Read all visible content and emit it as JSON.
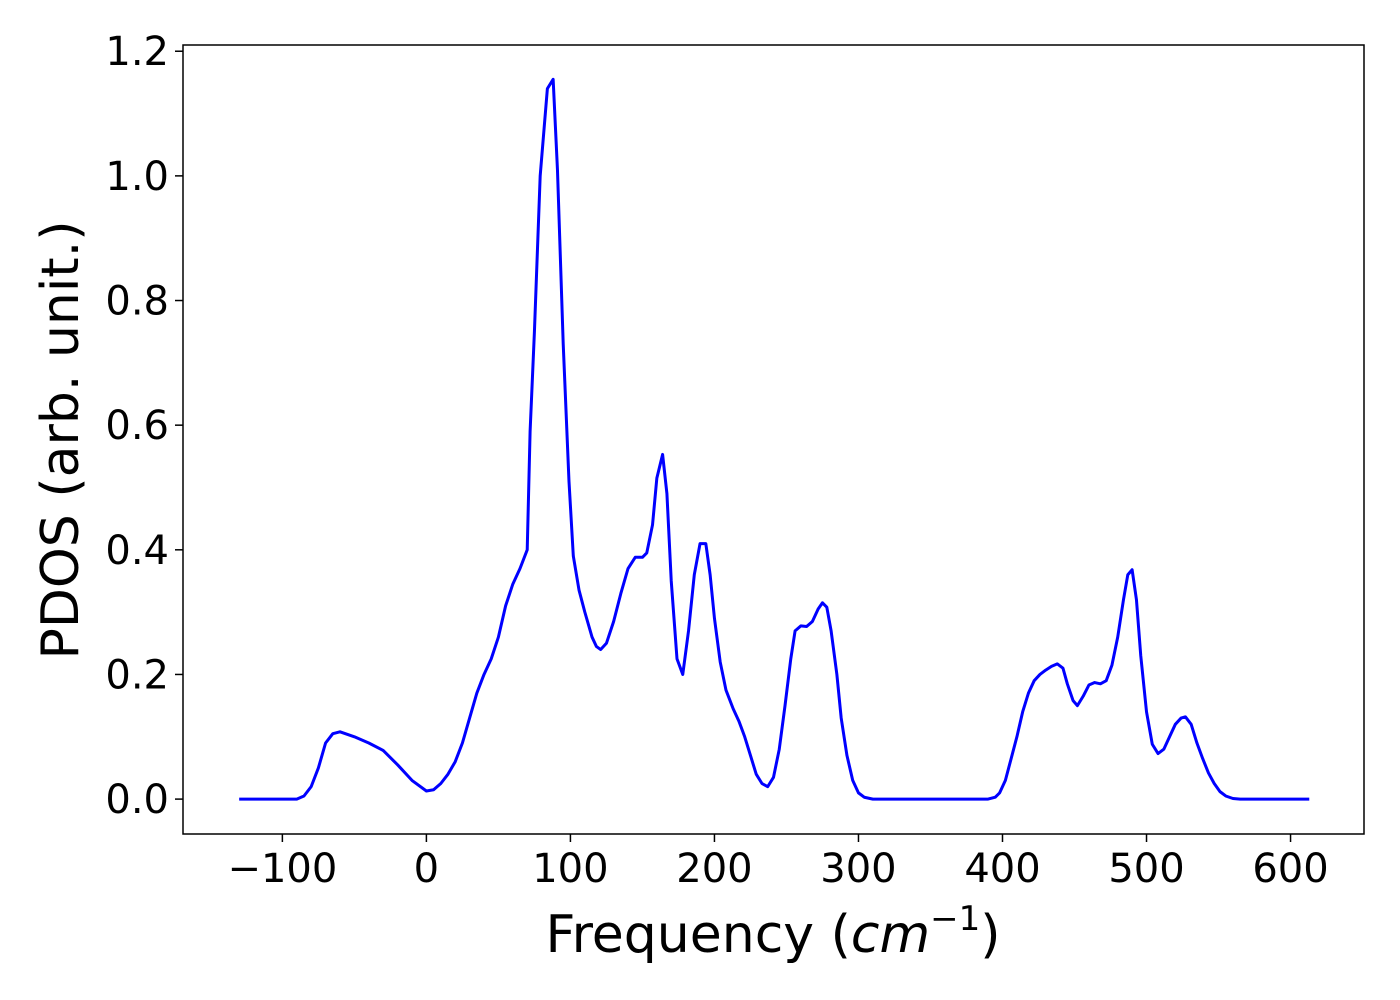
{
  "chart_data": {
    "type": "line",
    "xlabel": {
      "prefix": "Frequency (",
      "unit": "cm",
      "exponent": "−1",
      "suffix": ")"
    },
    "ylabel": "PDOS (arb. unit.)",
    "x": [
      -130,
      -90,
      -85,
      -80,
      -75,
      -70,
      -65,
      -60,
      -50,
      -40,
      -30,
      -20,
      -10,
      0,
      5,
      10,
      15,
      20,
      25,
      30,
      35,
      40,
      45,
      50,
      55,
      60,
      65,
      70,
      72,
      75,
      79,
      84,
      88,
      91,
      95,
      99,
      102,
      106,
      110,
      115,
      118,
      121,
      125,
      130,
      135,
      140,
      145,
      150,
      153,
      157,
      160,
      164,
      167,
      170,
      174,
      178,
      182,
      186,
      190,
      194,
      197,
      200,
      204,
      208,
      213,
      217,
      221,
      225,
      229,
      233,
      237,
      241,
      245,
      249,
      253,
      256,
      260,
      264,
      268,
      272,
      275,
      278,
      281,
      285,
      288,
      292,
      296,
      300,
      304,
      310,
      390,
      395,
      398,
      402,
      406,
      410,
      414,
      418,
      422,
      426,
      430,
      434,
      438,
      442,
      445,
      449,
      452,
      456,
      460,
      464,
      468,
      472,
      476,
      480,
      484,
      487,
      490,
      493,
      496,
      500,
      504,
      508,
      512,
      516,
      520,
      524,
      527,
      531,
      535,
      539,
      543,
      547,
      551,
      555,
      560,
      565,
      613
    ],
    "series": [
      {
        "color": "#0000ff",
        "values": [
          0,
          0,
          0.005,
          0.02,
          0.05,
          0.09,
          0.105,
          0.108,
          0.1,
          0.09,
          0.078,
          0.055,
          0.03,
          0.013,
          0.015,
          0.025,
          0.04,
          0.06,
          0.09,
          0.13,
          0.17,
          0.2,
          0.225,
          0.26,
          0.31,
          0.345,
          0.37,
          0.4,
          0.59,
          0.75,
          1.0,
          1.14,
          1.155,
          1.01,
          0.73,
          0.51,
          0.39,
          0.335,
          0.3,
          0.26,
          0.245,
          0.24,
          0.25,
          0.285,
          0.33,
          0.37,
          0.388,
          0.388,
          0.395,
          0.44,
          0.515,
          0.553,
          0.49,
          0.35,
          0.225,
          0.2,
          0.27,
          0.36,
          0.41,
          0.41,
          0.36,
          0.29,
          0.22,
          0.175,
          0.145,
          0.125,
          0.1,
          0.07,
          0.04,
          0.025,
          0.02,
          0.035,
          0.08,
          0.15,
          0.225,
          0.27,
          0.278,
          0.277,
          0.285,
          0.305,
          0.315,
          0.308,
          0.27,
          0.2,
          0.13,
          0.07,
          0.03,
          0.01,
          0.003,
          0,
          0,
          0.003,
          0.01,
          0.03,
          0.065,
          0.1,
          0.14,
          0.17,
          0.19,
          0.2,
          0.207,
          0.213,
          0.217,
          0.21,
          0.185,
          0.158,
          0.15,
          0.165,
          0.183,
          0.187,
          0.185,
          0.19,
          0.215,
          0.26,
          0.32,
          0.36,
          0.368,
          0.32,
          0.23,
          0.14,
          0.088,
          0.073,
          0.08,
          0.1,
          0.12,
          0.13,
          0.132,
          0.12,
          0.09,
          0.065,
          0.042,
          0.025,
          0.012,
          0.005,
          0.001,
          0,
          0
        ]
      }
    ],
    "xlim": [
      -169,
      651
    ],
    "ylim": [
      -0.056,
      1.21
    ],
    "xticks": [
      {
        "value": -100,
        "label": "−100"
      },
      0,
      100,
      200,
      300,
      400,
      500,
      600
    ],
    "yticks": [
      {
        "value": 0,
        "label": "0.0"
      },
      0.2,
      0.4,
      0.6,
      0.8,
      {
        "value": 1,
        "label": "1.0"
      },
      1.2
    ]
  }
}
